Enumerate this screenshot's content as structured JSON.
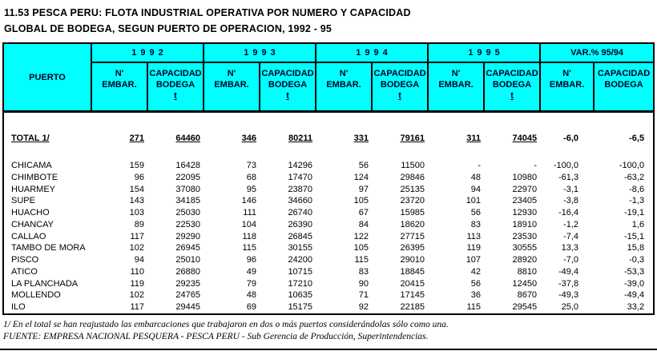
{
  "title": {
    "line1": "11.53 PESCA PERU: FLOTA INDUSTRIAL OPERATIVA POR NUMERO Y CAPACIDAD",
    "line2": "GLOBAL DE BODEGA, SEGUN PUERTO DE OPERACION, 1992 - 95"
  },
  "colors": {
    "header_bg": "#00FFFF",
    "header_text": "#000028",
    "border": "#000000"
  },
  "table": {
    "corner_label": "PUERTO",
    "year_headers": [
      "1992",
      "1993",
      "1994",
      "1995"
    ],
    "var_header": "VAR.% 95/94",
    "sub": {
      "n_line1": "N'",
      "n_line2": "EMBAR.",
      "cap_line1": "CAPACIDAD",
      "cap_line2": "BODEGA",
      "cap_unit": "t"
    },
    "total": {
      "label": "TOTAL 1/",
      "values": [
        "271",
        "64460",
        "346",
        "80211",
        "331",
        "79161",
        "311",
        "74045",
        "-6,0",
        "-6,5"
      ]
    },
    "rows": [
      {
        "label": "CHICAMA",
        "values": [
          "159",
          "16428",
          "73",
          "14296",
          "56",
          "11500",
          "-",
          "-",
          "-100,0",
          "-100,0"
        ]
      },
      {
        "label": "CHIMBOTE",
        "values": [
          "96",
          "22095",
          "68",
          "17470",
          "124",
          "29846",
          "48",
          "10980",
          "-61,3",
          "-63,2"
        ]
      },
      {
        "label": "HUARMEY",
        "values": [
          "154",
          "37080",
          "95",
          "23870",
          "97",
          "25135",
          "94",
          "22970",
          "-3,1",
          "-8,6"
        ]
      },
      {
        "label": "SUPE",
        "values": [
          "143",
          "34185",
          "146",
          "34660",
          "105",
          "23720",
          "101",
          "23405",
          "-3,8",
          "-1,3"
        ]
      },
      {
        "label": "HUACHO",
        "values": [
          "103",
          "25030",
          "111",
          "26740",
          "67",
          "15985",
          "56",
          "12930",
          "-16,4",
          "-19,1"
        ]
      },
      {
        "label": "CHANCAY",
        "values": [
          "89",
          "22530",
          "104",
          "26390",
          "84",
          "18620",
          "83",
          "18910",
          "-1,2",
          "1,6"
        ]
      },
      {
        "label": "CALLAO",
        "values": [
          "117",
          "29290",
          "118",
          "26845",
          "122",
          "27715",
          "113",
          "23530",
          "-7,4",
          "-15,1"
        ]
      },
      {
        "label": "TAMBO DE MORA",
        "values": [
          "102",
          "26945",
          "115",
          "30155",
          "105",
          "26395",
          "119",
          "30555",
          "13,3",
          "15,8"
        ]
      },
      {
        "label": "PISCO",
        "values": [
          "94",
          "25010",
          "96",
          "24200",
          "115",
          "29010",
          "107",
          "28920",
          "-7,0",
          "-0,3"
        ]
      },
      {
        "label": "ATICO",
        "values": [
          "110",
          "26880",
          "49",
          "10715",
          "83",
          "18845",
          "42",
          "8810",
          "-49,4",
          "-53,3"
        ]
      },
      {
        "label": "LA PLANCHADA",
        "values": [
          "119",
          "29235",
          "79",
          "17210",
          "90",
          "20415",
          "56",
          "12450",
          "-37,8",
          "-39,0"
        ]
      },
      {
        "label": "MOLLENDO",
        "values": [
          "102",
          "24765",
          "48",
          "10635",
          "71",
          "17145",
          "36",
          "8670",
          "-49,3",
          "-49,4"
        ]
      },
      {
        "label": "ILO",
        "values": [
          "117",
          "29445",
          "69",
          "15175",
          "92",
          "22185",
          "115",
          "29545",
          "25,0",
          "33,2"
        ]
      }
    ]
  },
  "footnotes": {
    "note1": "1/ En el total se han reajustado las embarcaciones que trabajaron en dos o más puertos considerándolas sólo como una.",
    "source": "FUENTE: EMPRESA NACIONAL PESQUERA - PESCA PERU - Sub Gerencia de Producción, Superintendencias."
  }
}
